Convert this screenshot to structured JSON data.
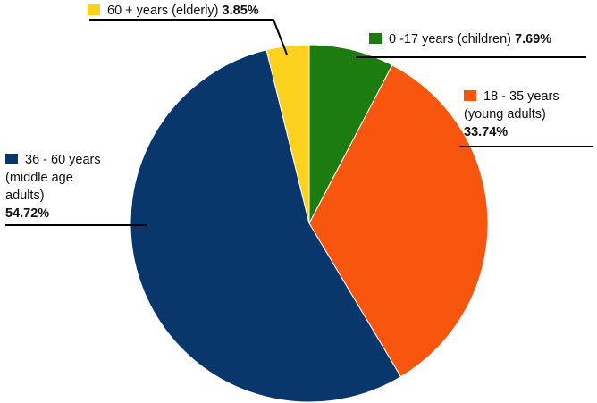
{
  "chart_data": {
    "type": "pie",
    "title": "",
    "start": "top, clockwise",
    "slices": [
      {
        "name_lines": [
          "0 -17 years (children)"
        ],
        "value": 7.69,
        "label": "7.69%",
        "color": "#1c7c10"
      },
      {
        "name_lines": [
          "18 - 35 years",
          "(young adults)"
        ],
        "value": 33.74,
        "label": "33.74%",
        "color": "#f8560f"
      },
      {
        "name_lines": [
          "36 - 60 years",
          "(middle age",
          "adults)"
        ],
        "value": 54.72,
        "label": "54.72%",
        "color": "#0a376b"
      },
      {
        "name_lines": [
          "60 + years (elderly)"
        ],
        "value": 3.85,
        "label": "3.85%",
        "color": "#fcd21f"
      }
    ]
  }
}
